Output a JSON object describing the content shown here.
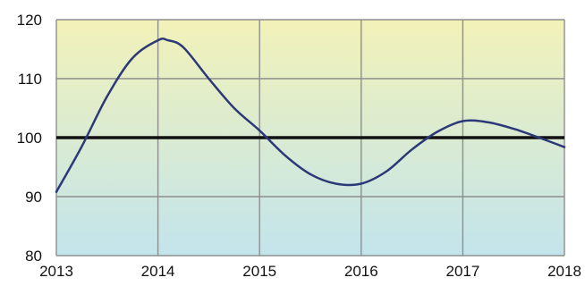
{
  "chart_data": {
    "type": "line",
    "title": "",
    "xlabel": "",
    "ylabel": "",
    "xlim": [
      2013,
      2018
    ],
    "ylim": [
      80,
      120
    ],
    "x_ticks": [
      2013,
      2014,
      2015,
      2016,
      2017,
      2018
    ],
    "y_ticks": [
      80,
      90,
      100,
      110,
      120
    ],
    "grid": true,
    "legend": "none",
    "reference_line": {
      "y": 100,
      "color": "#111111"
    },
    "background_gradient": [
      "#f2f2b8",
      "#c2e4ec"
    ],
    "series": [
      {
        "color": "#2c3978",
        "x": [
          2013.0,
          2013.25,
          2013.5,
          2013.75,
          2014.0,
          2014.1,
          2014.25,
          2014.5,
          2014.75,
          2015.0,
          2015.25,
          2015.5,
          2015.75,
          2016.0,
          2016.25,
          2016.5,
          2016.75,
          2017.0,
          2017.25,
          2017.5,
          2017.75,
          2018.0
        ],
        "y": [
          90.8,
          98.5,
          107.0,
          113.5,
          116.5,
          116.5,
          115.3,
          110.0,
          105.0,
          101.2,
          97.0,
          93.8,
          92.2,
          92.2,
          94.3,
          98.0,
          101.0,
          102.8,
          102.6,
          101.5,
          100.0,
          98.4
        ]
      }
    ]
  }
}
